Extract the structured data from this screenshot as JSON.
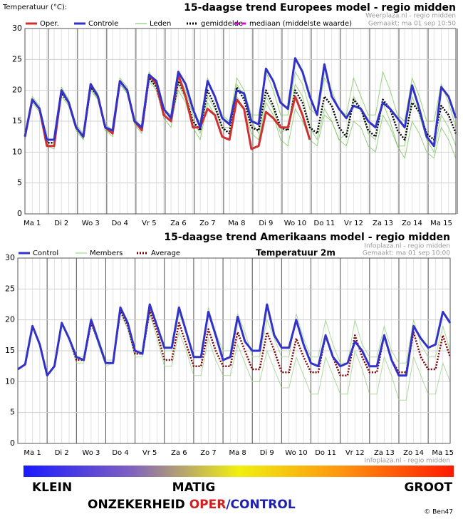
{
  "chart_data": [
    {
      "type": "line",
      "y_axis_label": "Temperatuur (°C):",
      "title": "15-daagse trend Europees model - regio midden",
      "source": "Weerplaza.nl - regio midden",
      "created": "Gemaakt: ma 01 sep 10:50",
      "categories": [
        null,
        "Ma 1",
        null,
        null,
        null,
        "Di 2",
        null,
        null,
        null,
        "Wo 3",
        null,
        null,
        null,
        "Do 4",
        null,
        null,
        null,
        "Vr 5",
        null,
        null,
        null,
        "Za 6",
        null,
        null,
        null,
        "Zo 7",
        null,
        null,
        null,
        "Ma 8",
        null,
        null,
        null,
        "Di 9",
        null,
        null,
        null,
        "Wo 10",
        null,
        null,
        null,
        "Do 11",
        null,
        null,
        null,
        "Vr 12",
        null,
        null,
        null,
        "Za 13",
        null,
        null,
        null,
        "Zo 14",
        null,
        null,
        null,
        "Ma 15",
        null,
        null
      ],
      "ylim": [
        0,
        30
      ],
      "yticks": [
        0,
        5,
        10,
        15,
        20,
        25,
        30
      ],
      "grid": true,
      "series": [
        {
          "name": "Oper.",
          "color": "#d03030",
          "style": "solid",
          "values": [
            12.5,
            18.5,
            17,
            11,
            11,
            20,
            18,
            14,
            12.5,
            21,
            19,
            14,
            13,
            21.5,
            20,
            15,
            13.5,
            22.5,
            21,
            16,
            15,
            22.5,
            19,
            14,
            14,
            17,
            16,
            12.5,
            12,
            18.5,
            17,
            10.5,
            11,
            16.5,
            15.5,
            14,
            14,
            19,
            16,
            12,
            null,
            null,
            null,
            null,
            null,
            null,
            null,
            null,
            null,
            null,
            null,
            null,
            null,
            null,
            null,
            null,
            null,
            null,
            null,
            null
          ]
        },
        {
          "name": "Controle",
          "color": "#3232c8",
          "style": "solid",
          "values": [
            12.5,
            18.5,
            17,
            12,
            12,
            20,
            18,
            14,
            12.5,
            21,
            19,
            14,
            13.5,
            21.5,
            20,
            15,
            14,
            22.5,
            21.5,
            17,
            15.5,
            23,
            21,
            17,
            14,
            21.5,
            19,
            15.5,
            14.5,
            20,
            19.5,
            15,
            14.5,
            23.5,
            21.5,
            18,
            17,
            25.2,
            23,
            19,
            16,
            24.2,
            19,
            17,
            15.5,
            17.5,
            17,
            15,
            14,
            18,
            17,
            15.5,
            14,
            20.8,
            17,
            12.5,
            11,
            20.5,
            19,
            15.5
          ]
        },
        {
          "name": "gemiddelde",
          "color": "#000000",
          "style": "dotted",
          "values": [
            12.5,
            18.5,
            17,
            11.5,
            11.5,
            19.5,
            18,
            14,
            12.5,
            20.5,
            19,
            14,
            13,
            21.5,
            20,
            15,
            13.5,
            22,
            20.5,
            16,
            15,
            21.5,
            19,
            15,
            13.5,
            20,
            17.5,
            14,
            13,
            20.5,
            18.5,
            14,
            13.5,
            20,
            17.5,
            14,
            13.5,
            20,
            18,
            14,
            13,
            19,
            17.5,
            14,
            12.5,
            18.5,
            17,
            13.5,
            12.5,
            18.5,
            17,
            13.5,
            12,
            18,
            16.5,
            13,
            12,
            17.5,
            16,
            13
          ]
        },
        {
          "name": "mediaan (middelste waarde)",
          "color": "#e000e0",
          "style": "dashed",
          "values": [
            null,
            null,
            null,
            null,
            null,
            null,
            null,
            null,
            null,
            null,
            null,
            null,
            null,
            null,
            null,
            null,
            null,
            null,
            null,
            null,
            null,
            null,
            null,
            null,
            null,
            null,
            null,
            null,
            null,
            null,
            null,
            null,
            null,
            null,
            null,
            null,
            null,
            null,
            null,
            null,
            null,
            null,
            null,
            null,
            null,
            null,
            null,
            null,
            null,
            null,
            null,
            null,
            null,
            null,
            null,
            null,
            null,
            null,
            null,
            null
          ]
        }
      ],
      "members": {
        "name": "Leden",
        "color": "#6cbf4a",
        "values": [
          [
            12.5,
            18.5,
            17,
            11,
            11,
            19.5,
            18,
            14,
            12,
            20,
            18.5,
            13.5,
            13,
            21,
            19.5,
            14.5,
            13,
            21.5,
            20,
            16,
            15,
            20,
            18,
            14,
            12,
            18,
            16,
            12.5,
            12,
            19,
            17,
            13,
            12,
            18,
            16,
            12,
            11,
            17,
            15,
            12,
            11,
            16,
            15,
            12,
            11,
            15,
            14,
            11,
            10,
            16,
            14,
            11,
            9,
            15,
            13,
            10,
            9,
            14,
            12,
            9
          ],
          [
            12.5,
            19,
            17.5,
            12,
            12,
            20.5,
            18.5,
            14.5,
            13,
            21,
            19.5,
            14.5,
            13.5,
            22,
            20.5,
            15.5,
            14,
            23,
            21,
            17,
            16,
            22.5,
            20,
            16,
            15,
            22,
            19,
            16,
            15,
            22,
            20,
            16,
            16,
            23,
            20,
            16,
            16,
            23,
            21,
            17,
            16,
            22,
            20,
            17,
            16,
            22,
            19,
            16,
            16,
            23,
            20,
            16,
            15,
            22,
            19,
            15,
            15,
            21,
            18,
            14
          ],
          [
            12,
            18,
            16.5,
            11,
            10.5,
            19,
            17.5,
            13.5,
            12,
            20.5,
            18.5,
            13.5,
            12.5,
            21,
            19.5,
            15,
            13.5,
            22,
            20.5,
            15.5,
            14,
            21,
            18.5,
            15,
            13,
            19,
            17,
            14,
            14,
            21,
            19,
            15,
            13,
            19,
            17,
            13,
            14,
            21,
            19,
            14,
            12,
            17,
            15,
            12,
            13,
            19,
            17,
            13,
            12,
            18,
            15,
            11,
            11,
            19,
            16,
            12,
            10,
            16,
            14,
            11
          ]
        ]
      }
    },
    {
      "type": "line",
      "title": "15-daagse trend Amerikaans model - regio midden",
      "subtitle": "Temperatuur  2m",
      "source": "Infoplaza.nl - regio midden",
      "created": "Gemaakt: ma 01 sep 10:00",
      "watermark": "Infoplaza.nl - regio midden",
      "categories": [
        null,
        null,
        "Ma 1",
        null,
        null,
        null,
        "Di 2",
        null,
        null,
        null,
        "Wo 3",
        null,
        null,
        null,
        "Do 4",
        null,
        null,
        null,
        "Vr 5",
        null,
        null,
        null,
        "Za 6",
        null,
        null,
        null,
        "Zo 7",
        null,
        null,
        null,
        "Ma 8",
        null,
        null,
        null,
        "Di 9",
        null,
        null,
        null,
        "Wo 10",
        null,
        null,
        null,
        "Do 11",
        null,
        null,
        null,
        "Vr 12",
        null,
        null,
        null,
        "Za 13",
        null,
        null,
        null,
        "Zo 14",
        null,
        null,
        null,
        "Ma 15",
        null
      ],
      "ylim": [
        0,
        30
      ],
      "yticks": [
        0,
        5,
        10,
        15,
        20,
        25,
        30
      ],
      "grid": true,
      "series": [
        {
          "name": "Control",
          "color": "#3232c8",
          "style": "solid",
          "values": [
            12,
            12.8,
            19,
            16,
            11,
            12.5,
            19.5,
            17,
            14,
            13.5,
            20,
            16.5,
            13,
            13,
            22,
            19.5,
            15,
            14.5,
            22.5,
            19,
            15.5,
            15.5,
            22,
            18,
            14,
            14,
            21.3,
            17.5,
            13.5,
            14,
            20.5,
            16.5,
            15,
            15,
            22.5,
            17.5,
            15.5,
            15.5,
            20,
            16,
            13,
            12.5,
            17.5,
            14,
            12.5,
            13,
            16.5,
            15,
            12.5,
            12.5,
            17.5,
            13.5,
            11,
            11,
            19,
            17,
            15.5,
            16,
            21.3,
            19.5
          ]
        },
        {
          "name": "Average",
          "color": "#7a0000",
          "style": "dotted",
          "values": [
            12,
            12.8,
            19,
            16,
            11,
            12.5,
            19.5,
            17,
            13.5,
            13.5,
            19.5,
            16.5,
            13,
            13,
            21.5,
            19,
            14.5,
            14.5,
            21.5,
            18,
            13.5,
            13.5,
            19.5,
            16,
            12.5,
            12.5,
            18.5,
            15,
            12.5,
            12.5,
            18,
            15,
            12,
            12,
            18,
            15,
            11.5,
            11.5,
            17,
            14,
            11.5,
            11.5,
            17.5,
            14,
            11,
            11,
            17.5,
            14,
            11.5,
            11.5,
            17.5,
            13.5,
            11.5,
            11.5,
            18,
            14,
            12,
            12,
            17.5,
            14
          ]
        }
      ],
      "members": {
        "name": "Members",
        "color": "#8fcc78",
        "values": [
          [
            12,
            12.8,
            19,
            16,
            11,
            12.5,
            19.5,
            17,
            13,
            13,
            19.5,
            16,
            12.5,
            13,
            21,
            18.5,
            14,
            14,
            21,
            17,
            12.5,
            12.5,
            18,
            15,
            11,
            11,
            17,
            13.5,
            11,
            11,
            16,
            13,
            10,
            10,
            15,
            12,
            9,
            9,
            14,
            11,
            8,
            8,
            14,
            11,
            8,
            8,
            15,
            12,
            8,
            8,
            14,
            11,
            7,
            7,
            14,
            11,
            8,
            8,
            13,
            10
          ],
          [
            12,
            12.8,
            19,
            16,
            11,
            12.5,
            19.5,
            17,
            14,
            14,
            20.5,
            17,
            13.5,
            13.5,
            22,
            19.5,
            15,
            15,
            22,
            19,
            15,
            15,
            21,
            18,
            14,
            14,
            22,
            18,
            15,
            15,
            21,
            18,
            14,
            14,
            20,
            17,
            14,
            14,
            21,
            17,
            14,
            14,
            20,
            16,
            13,
            13,
            20,
            16,
            14,
            14,
            19,
            15,
            13,
            13,
            20,
            16,
            14,
            14,
            19,
            15
          ]
        ]
      }
    }
  ],
  "footer": {
    "scale_labels": [
      "KLEIN",
      "MATIG",
      "GROOT"
    ],
    "caption": "ONZEKERHEID",
    "oper": "OPER",
    "separator": "/",
    "control": "CONTROL",
    "credit": "© Ben47"
  }
}
